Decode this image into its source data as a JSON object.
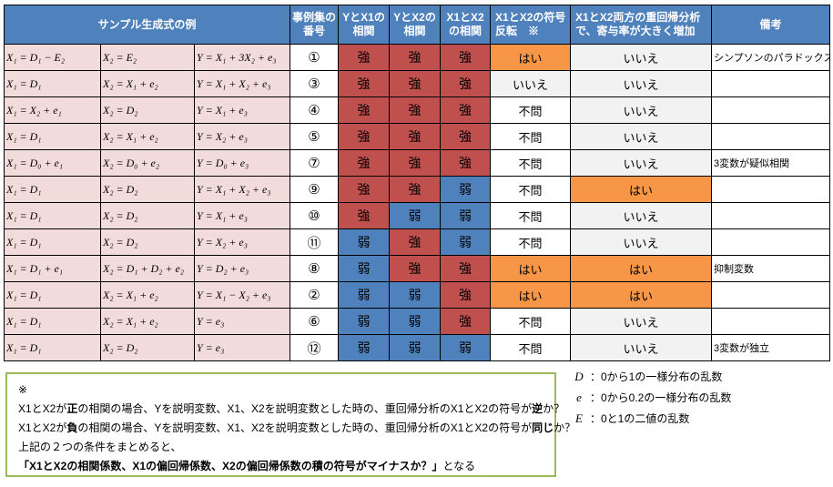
{
  "colors": {
    "header_blue": "#4F81BD",
    "formula_pink": "#F2DCDB",
    "strong_red": "#C0504D",
    "weak_blue": "#4F81BD",
    "yes_orange": "#F79646",
    "no_gray": "#F2F2F2",
    "note_border_green": "#9BBB59"
  },
  "table": {
    "headers": {
      "sample_formulas": "サンプル生成式の例",
      "case_number": "事例集の番号",
      "y_x1_corr": "YとX1の相関",
      "y_x2_corr": "YとX2の相関",
      "x1_x2_corr": "X1とX2の相関",
      "sign_reversal": "X1とX2の符号反転　※",
      "multi_regression": "X1とX2両方の重回帰分析で、寄与率が大きく増加",
      "remarks": "備考"
    },
    "value_classes": {
      "強": "strong",
      "弱": "weak",
      "はい": "yes",
      "いいえ": "no",
      "不問": "neutral"
    },
    "rows": [
      {
        "f1": "X₁ = D₁ − E₂",
        "f2": "X₂ = E₂",
        "f3": "Y = X₁ + 3X₂ + e₃",
        "num": "①",
        "correlations": [
          "強",
          "強",
          "強"
        ],
        "sign": "はい",
        "multi": "いいえ",
        "note": "シンプソンのパラドックス"
      },
      {
        "f1": "X₁ = D₁",
        "f2": "X₂ = X₁ + e₂",
        "f3": "Y = X₁ + X₂ + e₃",
        "num": "③",
        "correlations": [
          "強",
          "強",
          "強"
        ],
        "sign": "いいえ",
        "multi": "いいえ",
        "note": ""
      },
      {
        "f1": "X₁ = X₂ + e₁",
        "f2": "X₂ = D₂",
        "f3": "Y = X₁ + e₃",
        "num": "④",
        "correlations": [
          "強",
          "強",
          "強"
        ],
        "sign": "不問",
        "multi": "いいえ",
        "note": ""
      },
      {
        "f1": "X₁ = D₁",
        "f2": "X₂ = X₁ + e₂",
        "f3": "Y = X₂ + e₃",
        "num": "⑤",
        "correlations": [
          "強",
          "強",
          "強"
        ],
        "sign": "不問",
        "multi": "いいえ",
        "note": ""
      },
      {
        "f1": "X₁ = D₀ + e₁",
        "f2": "X₂ = D₀ + e₂",
        "f3": "Y = D₀ + e₃",
        "num": "⑦",
        "correlations": [
          "強",
          "強",
          "強"
        ],
        "sign": "不問",
        "multi": "いいえ",
        "note": "3変数が疑似相関"
      },
      {
        "f1": "X₁ = D₁",
        "f2": "X₂ = D₂",
        "f3": "Y = X₁ + X₂ + e₃",
        "num": "⑨",
        "correlations": [
          "強",
          "強",
          "弱"
        ],
        "sign": "不問",
        "multi": "はい",
        "note": ""
      },
      {
        "f1": "X₁ = D₁",
        "f2": "X₂ = D₂",
        "f3": "Y = X₁ + e₃",
        "num": "⑩",
        "correlations": [
          "強",
          "弱",
          "弱"
        ],
        "sign": "不問",
        "multi": "いいえ",
        "note": ""
      },
      {
        "f1": "X₁ = D₁",
        "f2": "X₂ = D₂",
        "f3": "Y = X₂ + e₃",
        "num": "⑪",
        "correlations": [
          "弱",
          "強",
          "弱"
        ],
        "sign": "不問",
        "multi": "いいえ",
        "note": ""
      },
      {
        "f1": "X₁ = D₁ + e₁",
        "f2": "X₂ = D₁ + D₂ + e₂",
        "f3": "Y = D₂ + e₃",
        "num": "⑧",
        "correlations": [
          "弱",
          "強",
          "強"
        ],
        "sign": "はい",
        "multi": "はい",
        "note": "抑制変数"
      },
      {
        "f1": "X₁ = D₁",
        "f2": "X₂ = X₁ + e₂",
        "f3": "Y = X₁ − X₂ + e₃",
        "num": "②",
        "correlations": [
          "弱",
          "弱",
          "強"
        ],
        "sign": "はい",
        "multi": "はい",
        "note": ""
      },
      {
        "f1": "X₁ = D₁",
        "f2": "X₂ = X₁ + e₂",
        "f3": "Y = e₃",
        "num": "⑥",
        "correlations": [
          "弱",
          "弱",
          "強"
        ],
        "sign": "不問",
        "multi": "いいえ",
        "note": ""
      },
      {
        "f1": "X₁ = D₁",
        "f2": "X₂ = D₂",
        "f3": "Y = e₃",
        "num": "⑫",
        "correlations": [
          "弱",
          "弱",
          "弱"
        ],
        "sign": "不問",
        "multi": "いいえ",
        "note": "3変数が独立"
      }
    ]
  },
  "notes": {
    "marker": "※",
    "lines": [
      {
        "segments": [
          {
            "text": "X1とX2が"
          },
          {
            "text": "正",
            "bold": true
          },
          {
            "text": "の相関の場合、Yを説明変数、X1、X2を説明変数とした時の、重回帰分析のX1とX2の符号が"
          },
          {
            "text": "逆",
            "bold": true
          },
          {
            "text": "か？"
          }
        ]
      },
      {
        "segments": [
          {
            "text": "X1とX2が"
          },
          {
            "text": "負",
            "bold": true
          },
          {
            "text": "の相関の場合、Yを説明変数、X1、X2を説明変数とした時の、重回帰分析のX1とX2の符号が"
          },
          {
            "text": "同じ",
            "bold": true
          },
          {
            "text": "か？"
          }
        ]
      },
      {
        "segments": [
          {
            "text": "上記の２つの条件をまとめると、"
          }
        ]
      },
      {
        "segments": [
          {
            "text": "「X1とX2の相関係数、X1の偏回帰係数、X2の偏回帰係数の積の符号がマイナスか？」",
            "bold": true
          },
          {
            "text": "となる"
          }
        ]
      }
    ]
  },
  "legend": [
    {
      "symbol": "D",
      "text": "：0から1の一様分布の乱数"
    },
    {
      "symbol": "e",
      "text": "：0から0.2の一様分布の乱数"
    },
    {
      "symbol": "E",
      "text": "：0と1の二値の乱数"
    }
  ]
}
